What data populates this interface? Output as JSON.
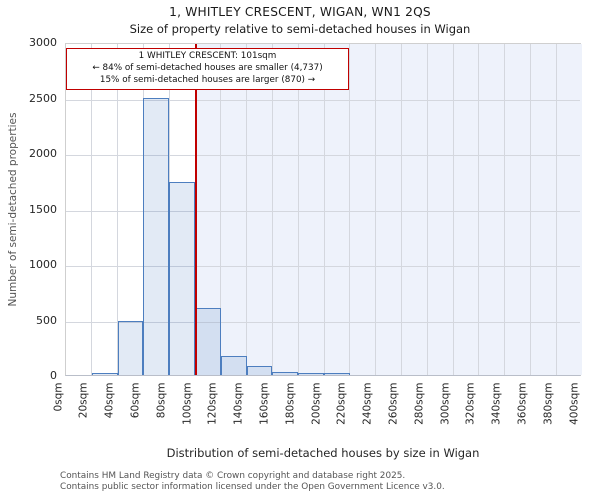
{
  "header": {
    "title": "1, WHITLEY CRESCENT, WIGAN, WN1 2QS",
    "subtitle": "Size of property relative to semi-detached houses in Wigan"
  },
  "annotation": {
    "line1": "1 WHITLEY CRESCENT: 101sqm",
    "line2": "← 84% of semi-detached houses are smaller (4,737)",
    "line3": "15% of semi-detached houses are larger (870) →"
  },
  "footer": {
    "line1": "Contains HM Land Registry data © Crown copyright and database right 2025.",
    "line2": "Contains public sector information licensed under the Open Government Licence v3.0."
  },
  "chart_data": {
    "type": "bar",
    "title": "1, WHITLEY CRESCENT, WIGAN, WN1 2QS",
    "subtitle": "Size of property relative to semi-detached houses in Wigan",
    "xlabel": "Distribution of semi-detached houses by size in Wigan",
    "ylabel": "Number of semi-detached properties",
    "xlim": [
      0,
      400
    ],
    "ylim": [
      0,
      3000
    ],
    "grid": true,
    "bin_width_sqm": 20,
    "bin_starts_sqm": [
      0,
      20,
      40,
      60,
      80,
      100,
      120,
      140,
      160,
      180,
      200,
      220,
      240,
      260,
      280,
      300,
      320,
      340,
      360,
      380
    ],
    "values": [
      0,
      15,
      490,
      2500,
      1740,
      600,
      170,
      80,
      30,
      15,
      15,
      0,
      0,
      0,
      0,
      0,
      0,
      0,
      0,
      0
    ],
    "x_tick_labels": [
      "0sqm",
      "20sqm",
      "40sqm",
      "60sqm",
      "80sqm",
      "100sqm",
      "120sqm",
      "140sqm",
      "160sqm",
      "180sqm",
      "200sqm",
      "220sqm",
      "240sqm",
      "260sqm",
      "280sqm",
      "300sqm",
      "320sqm",
      "340sqm",
      "360sqm",
      "380sqm",
      "400sqm"
    ],
    "y_ticks": [
      0,
      500,
      1000,
      1500,
      2000,
      2500,
      3000
    ],
    "marker": {
      "value_sqm": 101,
      "color": "#c00000"
    },
    "shaded_region": {
      "from_sqm": 101,
      "to_sqm": 400,
      "color": "#eef2fb"
    },
    "colors": {
      "bar_fill": "#dce6f3",
      "bar_edge": "#4d7ebf",
      "gridline": "#d4d7de",
      "annotation_border": "#c00000"
    }
  }
}
